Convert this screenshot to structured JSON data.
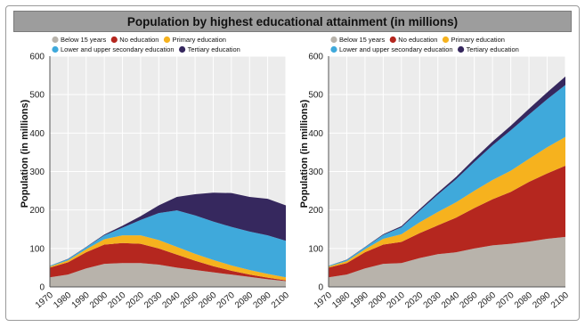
{
  "title": "Population by highest educational attainment (in millions)",
  "colors": {
    "below15": "#b8b3ab",
    "noedu": "#b5271f",
    "primary": "#f6b21e",
    "secondary": "#3fa9db",
    "tertiary": "#36285e",
    "panel_bg": "#ececec",
    "grid": "#ffffff"
  },
  "chart_data": [
    {
      "type": "area",
      "stacked": true,
      "ylabel": "Population (in millions)",
      "ylim": [
        0,
        600
      ],
      "yticks": [
        "0",
        "100",
        "200",
        "300",
        "400",
        "500",
        "600"
      ],
      "x": [
        1970,
        1980,
        1990,
        2000,
        2010,
        2020,
        2030,
        2040,
        2050,
        2060,
        2070,
        2080,
        2090,
        2100
      ],
      "xticks": [
        "1970",
        "1980",
        "1990",
        "2000",
        "2010",
        "2020",
        "2030",
        "2040",
        "2050",
        "2060",
        "2070",
        "2080",
        "2090",
        "2100"
      ],
      "grid": true,
      "legend_position": "top-left",
      "series": [
        {
          "name": "Below 15 years",
          "color_key": "below15",
          "values": [
            25,
            32,
            48,
            60,
            62,
            62,
            58,
            50,
            44,
            38,
            32,
            26,
            20,
            15
          ]
        },
        {
          "name": "No education",
          "color_key": "noedu",
          "values": [
            25,
            32,
            42,
            50,
            52,
            50,
            42,
            34,
            24,
            16,
            10,
            6,
            4,
            2
          ]
        },
        {
          "name": "Primary education",
          "color_key": "primary",
          "values": [
            3,
            5,
            8,
            14,
            20,
            22,
            22,
            20,
            18,
            16,
            14,
            12,
            10,
            8
          ]
        },
        {
          "name": "Lower and upper secondary education",
          "color_key": "secondary",
          "values": [
            2,
            3,
            5,
            10,
            20,
            40,
            70,
            95,
            100,
            100,
            100,
            100,
            100,
            95
          ]
        },
        {
          "name": "Tertiary education",
          "color_key": "tertiary",
          "values": [
            0,
            1,
            1,
            2,
            5,
            10,
            20,
            35,
            55,
            75,
            88,
            90,
            95,
            92
          ]
        }
      ]
    },
    {
      "type": "area",
      "stacked": true,
      "ylabel": "Population (in millions)",
      "ylim": [
        0,
        600
      ],
      "yticks": [
        "0",
        "100",
        "200",
        "300",
        "400",
        "500",
        "600"
      ],
      "x": [
        1970,
        1980,
        1990,
        2000,
        2010,
        2020,
        2030,
        2040,
        2050,
        2060,
        2070,
        2080,
        2090,
        2100
      ],
      "xticks": [
        "1970",
        "1980",
        "1990",
        "2000",
        "2010",
        "2020",
        "2030",
        "2040",
        "2050",
        "2060",
        "2070",
        "2080",
        "2090",
        "2100"
      ],
      "grid": true,
      "legend_position": "top-left",
      "series": [
        {
          "name": "Below 15 years",
          "color_key": "below15",
          "values": [
            25,
            32,
            48,
            60,
            62,
            75,
            85,
            90,
            100,
            108,
            112,
            118,
            125,
            130
          ]
        },
        {
          "name": "No education",
          "color_key": "noedu",
          "values": [
            25,
            30,
            42,
            50,
            55,
            65,
            75,
            90,
            105,
            120,
            135,
            155,
            170,
            185
          ]
        },
        {
          "name": "Primary education",
          "color_key": "primary",
          "values": [
            3,
            5,
            8,
            15,
            20,
            28,
            35,
            40,
            45,
            50,
            55,
            60,
            68,
            75
          ]
        },
        {
          "name": "Lower and upper secondary education",
          "color_key": "secondary",
          "values": [
            2,
            3,
            5,
            10,
            18,
            30,
            45,
            60,
            75,
            90,
            105,
            115,
            125,
            135
          ]
        },
        {
          "name": "Tertiary education",
          "color_key": "tertiary",
          "values": [
            0,
            1,
            1,
            2,
            3,
            4,
            5,
            6,
            8,
            10,
            12,
            15,
            18,
            22
          ]
        }
      ]
    }
  ]
}
